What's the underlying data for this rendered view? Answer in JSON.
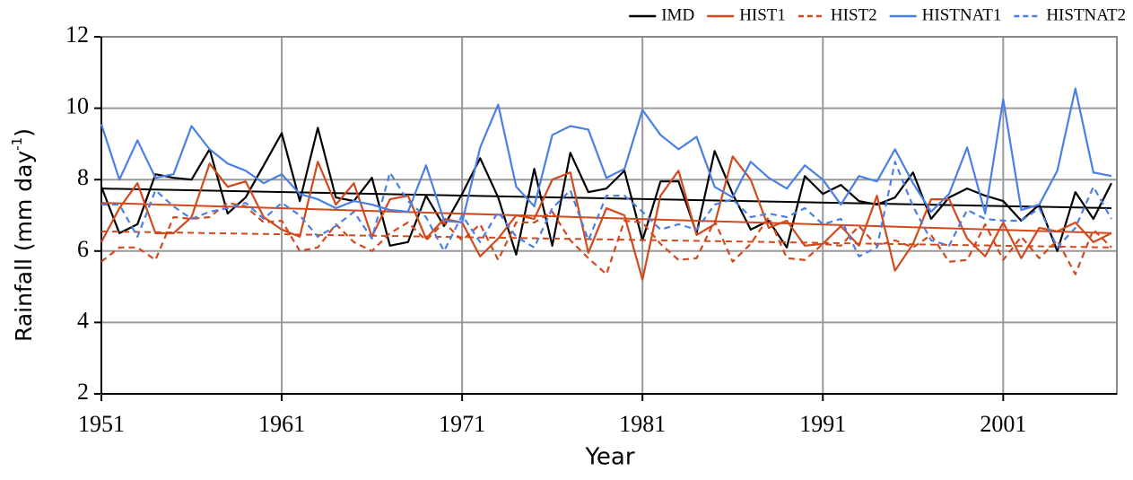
{
  "chart_data": {
    "type": "line",
    "xlabel": "Year",
    "ylabel": {
      "text": "Rainfall (mm day",
      "sup": "-1",
      "end": ")"
    },
    "x": [
      1951,
      1952,
      1953,
      1954,
      1955,
      1956,
      1957,
      1958,
      1959,
      1960,
      1961,
      1962,
      1963,
      1964,
      1965,
      1966,
      1967,
      1968,
      1969,
      1970,
      1971,
      1972,
      1973,
      1974,
      1975,
      1976,
      1977,
      1978,
      1979,
      1980,
      1981,
      1982,
      1983,
      1984,
      1985,
      1986,
      1987,
      1988,
      1989,
      1990,
      1991,
      1992,
      1993,
      1994,
      1995,
      1996,
      1997,
      1998,
      1999,
      2000,
      2001,
      2002,
      2003,
      2004,
      2005,
      2006,
      2007
    ],
    "xlim": [
      1951,
      2007.3
    ],
    "xticks": [
      1951,
      1961,
      1971,
      1981,
      1991,
      2001
    ],
    "ylim": [
      2,
      12
    ],
    "yticks": [
      2,
      4,
      6,
      8,
      10,
      12
    ],
    "grid": true,
    "legend": "top-right",
    "series": [
      {
        "name": "IMD",
        "color": "#000000",
        "dash": false,
        "trend": [
          7.75,
          7.2
        ],
        "values": [
          7.8,
          6.5,
          6.75,
          8.15,
          8.05,
          8.0,
          8.85,
          7.05,
          7.5,
          8.4,
          9.3,
          7.4,
          9.45,
          7.5,
          7.4,
          8.05,
          6.15,
          6.25,
          7.55,
          6.7,
          7.6,
          8.6,
          7.5,
          5.9,
          8.3,
          6.15,
          8.75,
          7.65,
          7.75,
          8.25,
          6.3,
          7.95,
          7.95,
          6.5,
          8.8,
          7.6,
          6.6,
          6.85,
          6.1,
          8.1,
          7.6,
          7.85,
          7.4,
          7.3,
          7.5,
          8.2,
          6.9,
          7.5,
          7.75,
          7.55,
          7.4,
          6.85,
          7.3,
          6.0,
          7.65,
          6.9,
          7.9
        ]
      },
      {
        "name": "HIST1",
        "color": "#d2491c",
        "dash": false,
        "trend": [
          7.35,
          6.5
        ],
        "values": [
          6.25,
          7.2,
          7.9,
          6.5,
          6.5,
          6.95,
          8.45,
          7.8,
          7.95,
          6.95,
          6.6,
          6.4,
          8.5,
          7.3,
          7.9,
          6.4,
          7.45,
          7.55,
          6.35,
          6.9,
          6.8,
          5.85,
          6.35,
          7.0,
          6.9,
          8.0,
          8.2,
          5.95,
          7.2,
          7.0,
          5.2,
          7.55,
          8.25,
          6.45,
          6.75,
          8.65,
          8.0,
          6.65,
          6.85,
          6.15,
          6.2,
          6.7,
          6.15,
          7.55,
          5.45,
          6.2,
          7.45,
          7.45,
          6.35,
          5.85,
          6.8,
          5.8,
          6.65,
          6.55,
          6.8,
          6.25,
          6.5
        ]
      },
      {
        "name": "HIST2",
        "color": "#d2491c",
        "dash": true,
        "trend": [
          6.55,
          6.1
        ],
        "values": [
          5.7,
          6.1,
          6.1,
          5.75,
          6.95,
          6.9,
          6.95,
          7.35,
          7.25,
          6.8,
          6.85,
          6.0,
          6.1,
          6.75,
          6.25,
          6.0,
          6.5,
          6.8,
          6.3,
          6.8,
          6.3,
          6.75,
          5.75,
          6.8,
          6.8,
          7.1,
          6.3,
          5.8,
          5.35,
          6.85,
          6.8,
          6.2,
          5.75,
          5.8,
          6.85,
          5.7,
          6.2,
          6.95,
          5.8,
          5.75,
          6.2,
          6.15,
          6.7,
          6.15,
          6.3,
          6.1,
          6.45,
          5.7,
          5.75,
          6.75,
          5.75,
          6.4,
          5.8,
          6.3,
          5.35,
          6.6,
          6.1
        ]
      },
      {
        "name": "HISTNAT1",
        "color": "#4a7fe6",
        "dash": false,
        "values": [
          9.55,
          8.0,
          9.1,
          8.05,
          8.15,
          9.5,
          8.85,
          8.45,
          8.25,
          7.9,
          8.15,
          7.6,
          7.45,
          7.2,
          7.4,
          7.3,
          7.15,
          7.1,
          8.4,
          6.85,
          6.8,
          8.9,
          10.1,
          7.8,
          7.25,
          9.25,
          9.5,
          9.4,
          8.05,
          8.3,
          9.95,
          9.25,
          8.85,
          9.2,
          7.8,
          7.5,
          8.5,
          8.05,
          7.75,
          8.4,
          8.0,
          7.3,
          8.1,
          7.95,
          8.85,
          7.9,
          7.1,
          7.6,
          8.9,
          7.05,
          10.25,
          7.15,
          7.3,
          8.25,
          10.55,
          8.2,
          8.1
        ]
      },
      {
        "name": "HISTNAT2",
        "color": "#4a7fe6",
        "dash": true,
        "values": [
          7.3,
          7.3,
          6.4,
          7.7,
          7.25,
          6.9,
          7.1,
          7.2,
          7.35,
          6.9,
          7.35,
          7.0,
          6.4,
          6.7,
          7.1,
          6.35,
          8.2,
          7.4,
          6.95,
          6.0,
          7.0,
          6.25,
          7.1,
          6.4,
          6.1,
          7.2,
          7.7,
          6.3,
          7.55,
          7.55,
          7.1,
          6.6,
          6.75,
          6.6,
          7.3,
          7.45,
          6.95,
          7.05,
          6.95,
          7.2,
          6.75,
          6.9,
          5.85,
          6.1,
          8.5,
          7.25,
          6.3,
          6.15,
          7.15,
          6.9,
          6.85,
          6.85,
          7.2,
          6.1,
          6.65,
          7.8,
          6.9
        ]
      }
    ]
  }
}
